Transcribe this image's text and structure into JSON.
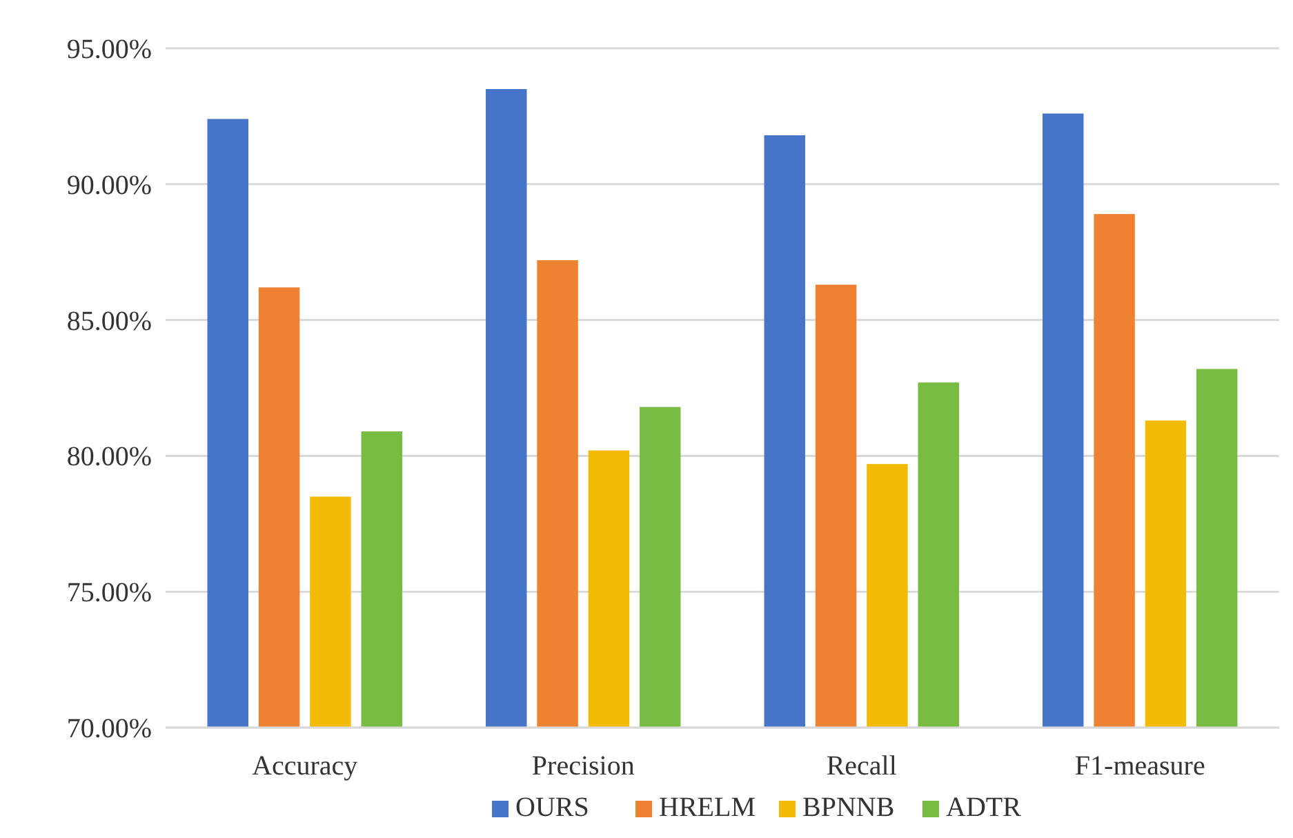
{
  "chart_data": {
    "type": "bar",
    "categories": [
      "Accuracy",
      "Precision",
      "Recall",
      "F1-measure"
    ],
    "series": [
      {
        "name": "OURS",
        "color": "#4674c9",
        "values": [
          92.4,
          93.5,
          91.8,
          92.6
        ]
      },
      {
        "name": "HRELM",
        "color": "#ee8232",
        "values": [
          86.2,
          87.2,
          86.3,
          88.9
        ]
      },
      {
        "name": "BPNNB",
        "color": "#f2bb05",
        "values": [
          78.5,
          80.2,
          79.7,
          81.3
        ]
      },
      {
        "name": "ADTR",
        "color": "#78bc43",
        "values": [
          80.9,
          81.8,
          82.7,
          83.2
        ]
      }
    ],
    "ylim": [
      70,
      95
    ],
    "yticks": [
      {
        "value": 70,
        "label": "70.00%"
      },
      {
        "value": 75,
        "label": "75.00%"
      },
      {
        "value": 80,
        "label": "80.00%"
      },
      {
        "value": 85,
        "label": "85.00%"
      },
      {
        "value": 90,
        "label": "90.00%"
      },
      {
        "value": 95,
        "label": "95.00%"
      }
    ],
    "grid": "y",
    "legend": "bottom"
  }
}
